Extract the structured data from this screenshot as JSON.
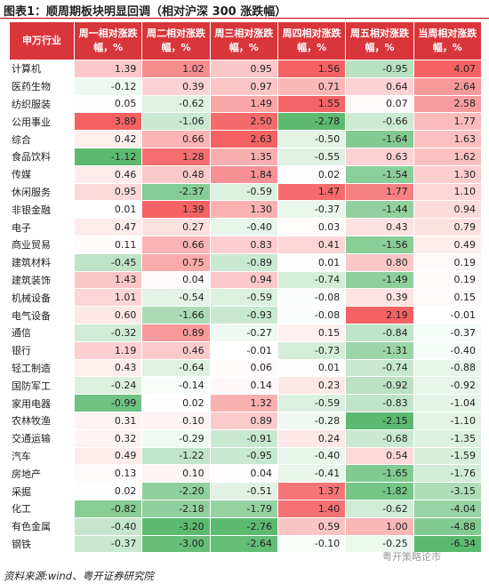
{
  "header": {
    "title": "图表1：顺周期板块明显回调（相对沪深 300 涨跌幅）"
  },
  "table": {
    "columns": [
      "申万行业",
      "周一相对涨跌幅，%",
      "周二相对涨跌幅，%",
      "周三相对涨跌幅，%",
      "周四相对涨跌幅，%",
      "周五相对涨跌幅，%",
      "当周相对涨跌幅，%"
    ],
    "rows": [
      [
        "计算机",
        "1.39",
        "1.02",
        "0.95",
        "1.56",
        "-0.95",
        "4.07"
      ],
      [
        "医药生物",
        "-0.12",
        "0.39",
        "0.97",
        "0.71",
        "0.64",
        "2.64"
      ],
      [
        "纺织服装",
        "0.05",
        "-0.62",
        "1.49",
        "1.55",
        "0.07",
        "2.58"
      ],
      [
        "公用事业",
        "3.89",
        "-1.06",
        "2.50",
        "-2.78",
        "-0.66",
        "1.77"
      ],
      [
        "综合",
        "0.42",
        "0.66",
        "2.63",
        "-0.50",
        "-1.64",
        "1.63"
      ],
      [
        "食品饮料",
        "-1.12",
        "1.28",
        "1.35",
        "-0.55",
        "0.63",
        "1.62"
      ],
      [
        "传媒",
        "0.46",
        "0.48",
        "1.84",
        "0.02",
        "-1.54",
        "1.30"
      ],
      [
        "休闲服务",
        "0.95",
        "-2.37",
        "-0.59",
        "1.47",
        "1.77",
        "1.10"
      ],
      [
        "非银金融",
        "0.01",
        "1.39",
        "1.30",
        "-0.37",
        "-1.44",
        "0.94"
      ],
      [
        "电子",
        "0.47",
        "0.27",
        "-0.40",
        "0.03",
        "0.43",
        "0.79"
      ],
      [
        "商业贸易",
        "0.11",
        "0.66",
        "0.83",
        "0.41",
        "-1.56",
        "0.49"
      ],
      [
        "建筑材料",
        "-0.45",
        "0.75",
        "-0.89",
        "0.01",
        "0.80",
        "0.19"
      ],
      [
        "建筑装饰",
        "1.43",
        "0.04",
        "0.94",
        "-0.74",
        "-1.49",
        "0.19"
      ],
      [
        "机械设备",
        "1.01",
        "-0.54",
        "-0.59",
        "-0.08",
        "0.39",
        "0.15"
      ],
      [
        "电气设备",
        "0.60",
        "-1.66",
        "-0.93",
        "-0.08",
        "2.19",
        "-0.01"
      ],
      [
        "通信",
        "-0.32",
        "0.89",
        "-0.27",
        "0.15",
        "-0.84",
        "-0.37"
      ],
      [
        "银行",
        "1.19",
        "0.46",
        "-0.01",
        "-0.73",
        "-1.31",
        "-0.40"
      ],
      [
        "轻工制造",
        "0.43",
        "-0.64",
        "0.06",
        "0.01",
        "-0.74",
        "-0.88"
      ],
      [
        "国防军工",
        "-0.24",
        "-0.14",
        "0.14",
        "0.23",
        "-0.92",
        "-0.92"
      ],
      [
        "家用电器",
        "-0.99",
        "0.02",
        "1.32",
        "-0.59",
        "-0.83",
        "-1.04"
      ],
      [
        "农林牧渔",
        "0.31",
        "0.10",
        "0.89",
        "-0.28",
        "-2.15",
        "-1.10"
      ],
      [
        "交通运输",
        "0.32",
        "-0.29",
        "-0.91",
        "0.24",
        "-0.68",
        "-1.35"
      ],
      [
        "汽车",
        "0.49",
        "-1.22",
        "-0.95",
        "-0.40",
        "0.54",
        "-1.59"
      ],
      [
        "房地产",
        "0.13",
        "0.10",
        "0.04",
        "-0.41",
        "-1.65",
        "-1.76"
      ],
      [
        "采掘",
        "0.02",
        "-2.20",
        "-0.51",
        "1.37",
        "-1.82",
        "-3.15"
      ],
      [
        "化工",
        "-0.82",
        "-2.18",
        "-1.79",
        "1.40",
        "-0.62",
        "-4.04"
      ],
      [
        "有色金属",
        "-0.40",
        "-3.20",
        "-2.76",
        "0.59",
        "1.00",
        "-4.88"
      ],
      [
        "钢铁",
        "-0.37",
        "-3.00",
        "-2.64",
        "-0.10",
        "-0.25",
        "-6.34"
      ]
    ]
  },
  "footer": {
    "source": "资料来源:wind、粤开证券研究院",
    "watermark": "粤开策略论市"
  }
}
